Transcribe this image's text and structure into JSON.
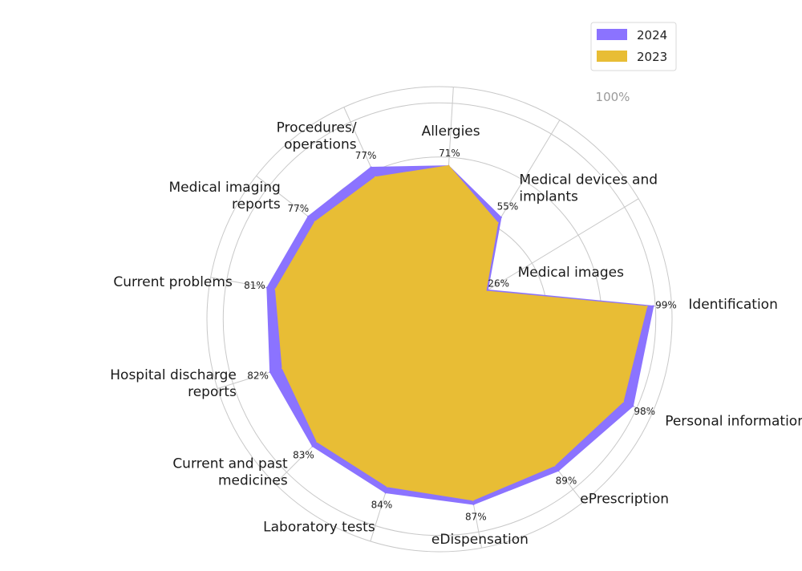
{
  "chart_data": {
    "type": "radar",
    "categories": [
      "Identification",
      "Medical images",
      "Medical devices and implants",
      "Allergies",
      "Procedures/ operations",
      "Medical imaging reports",
      "Current problems",
      "Hospital discharge reports",
      "Current and past medicines",
      "Laboratory tests",
      "eDispensation",
      "ePrescription",
      "Personal information"
    ],
    "value_labels": [
      "99%",
      "26%",
      "55%",
      "71%",
      "77%",
      "77%",
      "81%",
      "82%",
      "83%",
      "84%",
      "87%",
      "89%",
      "98%"
    ],
    "series": [
      {
        "name": "2024",
        "color": "#8b73ff",
        "values": [
          99,
          26,
          55,
          71,
          77,
          77,
          81,
          82,
          83,
          84,
          87,
          89,
          98
        ]
      },
      {
        "name": "2023",
        "color": "#e8bd35",
        "values": [
          96,
          25,
          52,
          71,
          72,
          73,
          77,
          76,
          80,
          81,
          85,
          86,
          93
        ]
      }
    ],
    "rlim": [
      0,
      100
    ],
    "r_tick_label": "100%",
    "grid": true,
    "legend": {
      "position": "top-right",
      "entries": [
        {
          "label": "2024",
          "color": "#8b73ff"
        },
        {
          "label": "2023",
          "color": "#e8bd35"
        }
      ]
    }
  }
}
